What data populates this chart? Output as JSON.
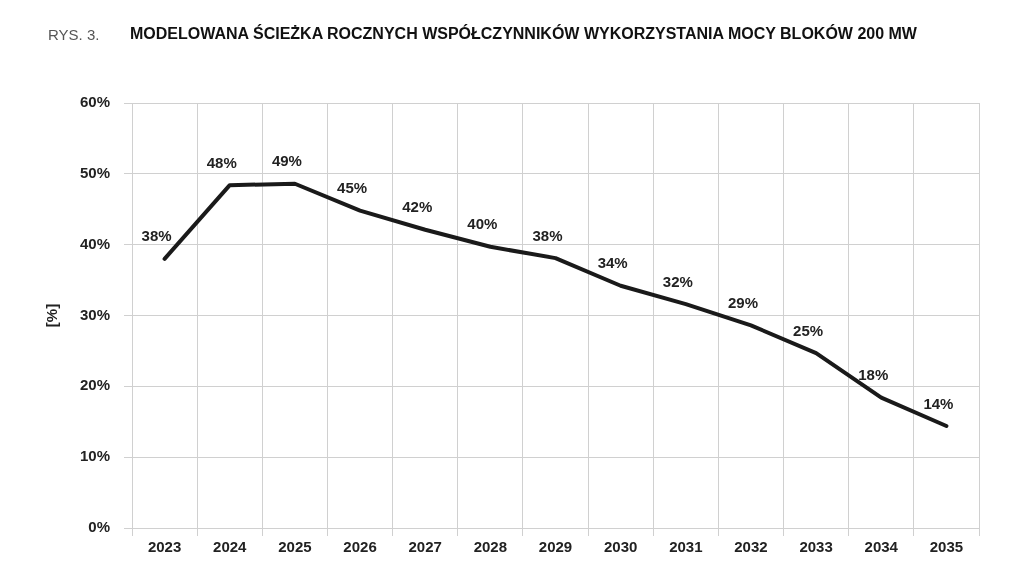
{
  "chart_data": {
    "type": "line",
    "title": "MODELOWANA ŚCIEŻKA ROCZNYCH WSPÓŁCZYNNIKÓW WYKORZYSTANIA MOCY BLOKÓW 200 MW",
    "annotations": [
      "RYS. 3."
    ],
    "ylabel": "[%]",
    "categories": [
      "2023",
      "2024",
      "2025",
      "2026",
      "2027",
      "2028",
      "2029",
      "2030",
      "2031",
      "2032",
      "2033",
      "2034",
      "2035"
    ],
    "series": [
      {
        "color": "#1a1a1a",
        "values": [
          38,
          48.4,
          48.6,
          44.8,
          42.1,
          39.7,
          38.1,
          34.2,
          31.6,
          28.6,
          24.7,
          18.4,
          14.4
        ],
        "value_labels": [
          "38%",
          "48%",
          "49%",
          "45%",
          "42%",
          "40%",
          "38%",
          "34%",
          "32%",
          "29%",
          "25%",
          "18%",
          "14%"
        ]
      }
    ],
    "ylim": [
      0,
      60
    ],
    "yticks": [
      {
        "value": 0,
        "label": "0%"
      },
      {
        "value": 10,
        "label": "10%"
      },
      {
        "value": 20,
        "label": "20%"
      },
      {
        "value": 30,
        "label": "30%"
      },
      {
        "value": 40,
        "label": "40%"
      },
      {
        "value": 50,
        "label": "50%"
      },
      {
        "value": 60,
        "label": "60%"
      }
    ],
    "grid": true,
    "legend": false,
    "marker": "none",
    "line_style": "solid"
  }
}
